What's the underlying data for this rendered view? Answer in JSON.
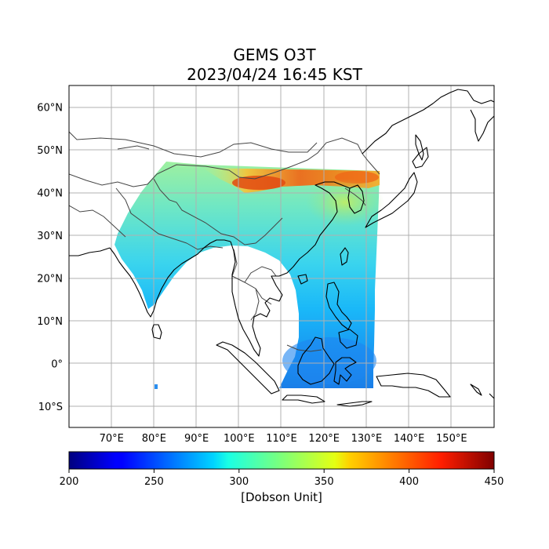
{
  "title": {
    "line1": "GEMS O3T",
    "line2": "2023/04/24 16:45 KST"
  },
  "map": {
    "lon_range": [
      60,
      160
    ],
    "lat_range": [
      -15,
      65
    ],
    "lon_ticks": [
      70,
      80,
      90,
      100,
      110,
      120,
      130,
      140,
      150
    ],
    "lat_ticks": [
      60,
      50,
      40,
      30,
      20,
      10,
      0,
      -10
    ],
    "lon_tick_labels": [
      "70°E",
      "80°E",
      "90°E",
      "100°E",
      "110°E",
      "120°E",
      "130°E",
      "140°E",
      "150°E"
    ],
    "lat_tick_labels": [
      "60°N",
      "50°N",
      "40°N",
      "30°N",
      "20°N",
      "10°N",
      "0°",
      "10°S"
    ],
    "grid": true
  },
  "colorbar": {
    "min": 200,
    "max": 450,
    "ticks": [
      200,
      250,
      300,
      350,
      400,
      450
    ],
    "tick_labels": [
      "200",
      "250",
      "300",
      "350",
      "400",
      "450"
    ],
    "label": "[Dobson Unit]",
    "colormap": "jet"
  },
  "colors": {
    "grid": "#b0b0b0",
    "coastline": "#000000",
    "border": "#444444",
    "low_ozone": "#1e90ff",
    "mid_ozone": "#5ad9f5",
    "high_ozone": "#f04a10"
  }
}
